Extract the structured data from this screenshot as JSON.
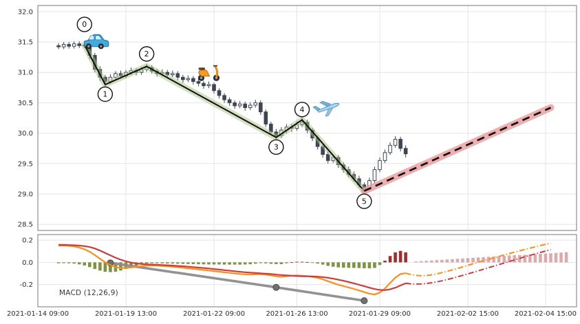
{
  "chart_data": {
    "type": "candlestick",
    "title": "",
    "x_axis": {
      "tick_labels": [
        "2021-01-14 09:00",
        "2021-01-19 13:00",
        "2021-01-22 09:00",
        "2021-01-26 13:00",
        "2021-01-29 09:00",
        "2021-02-02 15:00",
        "2021-02-04 15:00"
      ],
      "tick_indices": [
        0,
        17,
        34,
        50,
        66,
        83,
        98
      ]
    },
    "price_panel": {
      "y_tick_labels": [
        "32.0",
        "31.5",
        "31.0",
        "30.5",
        "30.0",
        "29.5",
        "29.0",
        "28.5"
      ],
      "ylim": [
        28.4,
        32.1
      ],
      "candles_start_index": 4,
      "candles_ohlc": [
        [
          31.44,
          31.48,
          31.38,
          31.42
        ],
        [
          31.42,
          31.5,
          31.38,
          31.46
        ],
        [
          31.46,
          31.5,
          31.39,
          31.43
        ],
        [
          31.43,
          31.51,
          31.39,
          31.47
        ],
        [
          31.47,
          31.51,
          31.4,
          31.44
        ],
        [
          31.44,
          31.52,
          31.4,
          31.45
        ],
        [
          31.45,
          31.48,
          31.22,
          31.28
        ],
        [
          31.28,
          31.32,
          31.0,
          31.05
        ],
        [
          31.05,
          31.1,
          30.86,
          30.92
        ],
        [
          30.92,
          30.96,
          30.76,
          30.85
        ],
        [
          30.85,
          30.97,
          30.81,
          30.92
        ],
        [
          30.92,
          31.02,
          30.88,
          30.98
        ],
        [
          30.98,
          31.03,
          30.9,
          30.94
        ],
        [
          30.94,
          31.04,
          30.9,
          31.0
        ],
        [
          31.0,
          31.08,
          30.96,
          31.03
        ],
        [
          31.03,
          31.07,
          30.95,
          31.0
        ],
        [
          31.0,
          31.09,
          30.96,
          31.05
        ],
        [
          31.05,
          31.14,
          31.01,
          31.08
        ],
        [
          31.08,
          31.12,
          30.98,
          31.02
        ],
        [
          31.02,
          31.06,
          30.93,
          30.98
        ],
        [
          30.98,
          31.05,
          30.94,
          31.0
        ],
        [
          31.0,
          31.04,
          30.91,
          30.96
        ],
        [
          30.96,
          31.03,
          30.92,
          30.98
        ],
        [
          30.98,
          31.02,
          30.87,
          30.92
        ],
        [
          30.92,
          30.96,
          30.83,
          30.88
        ],
        [
          30.88,
          30.95,
          30.84,
          30.9
        ],
        [
          30.9,
          30.94,
          30.8,
          30.85
        ],
        [
          30.85,
          30.89,
          30.77,
          30.82
        ],
        [
          30.82,
          30.86,
          30.73,
          30.78
        ],
        [
          30.78,
          30.85,
          30.74,
          30.8
        ],
        [
          30.8,
          30.83,
          30.65,
          30.7
        ],
        [
          30.7,
          30.74,
          30.57,
          30.62
        ],
        [
          30.62,
          30.66,
          30.5,
          30.55
        ],
        [
          30.55,
          30.59,
          30.45,
          30.5
        ],
        [
          30.5,
          30.54,
          30.4,
          30.45
        ],
        [
          30.45,
          30.53,
          30.41,
          30.48
        ],
        [
          30.48,
          30.52,
          30.37,
          30.42
        ],
        [
          30.42,
          30.51,
          30.38,
          30.46
        ],
        [
          30.46,
          30.55,
          30.42,
          30.5
        ],
        [
          30.5,
          30.54,
          30.3,
          30.35
        ],
        [
          30.35,
          30.39,
          30.1,
          30.15
        ],
        [
          30.15,
          30.19,
          29.97,
          30.02
        ],
        [
          30.02,
          30.07,
          29.9,
          29.96
        ],
        [
          29.96,
          30.1,
          29.92,
          30.05
        ],
        [
          30.05,
          30.15,
          30.0,
          30.1
        ],
        [
          30.1,
          30.15,
          30.02,
          30.08
        ],
        [
          30.08,
          30.19,
          30.04,
          30.14
        ],
        [
          30.14,
          30.26,
          30.1,
          30.18
        ],
        [
          30.18,
          30.22,
          30.0,
          30.05
        ],
        [
          30.05,
          30.09,
          29.87,
          29.92
        ],
        [
          29.92,
          29.96,
          29.73,
          29.78
        ],
        [
          29.78,
          29.82,
          29.6,
          29.65
        ],
        [
          29.65,
          29.7,
          29.5,
          29.55
        ],
        [
          29.55,
          29.65,
          29.51,
          29.6
        ],
        [
          29.6,
          29.64,
          29.43,
          29.48
        ],
        [
          29.48,
          29.52,
          29.35,
          29.4
        ],
        [
          29.4,
          29.45,
          29.27,
          29.32
        ],
        [
          29.32,
          29.37,
          29.2,
          29.25
        ],
        [
          29.25,
          29.3,
          29.1,
          29.15
        ],
        [
          29.15,
          29.19,
          29.0,
          29.08
        ],
        [
          29.08,
          29.27,
          29.05,
          29.22
        ],
        [
          29.22,
          29.45,
          29.18,
          29.4
        ],
        [
          29.4,
          29.6,
          29.36,
          29.55
        ],
        [
          29.55,
          29.73,
          29.51,
          29.68
        ],
        [
          29.68,
          29.85,
          29.64,
          29.8
        ],
        [
          29.8,
          29.95,
          29.76,
          29.9
        ],
        [
          29.9,
          29.94,
          29.7,
          29.75
        ],
        [
          29.75,
          29.8,
          29.6,
          29.66
        ]
      ],
      "wave_points": [
        {
          "label": "0",
          "i": 9,
          "price": 31.45,
          "label_dy": -30
        },
        {
          "label": "1",
          "i": 13,
          "price": 30.8,
          "label_dy": 14
        },
        {
          "label": "2",
          "i": 21,
          "price": 31.1,
          "label_dy": -18
        },
        {
          "label": "3",
          "i": 46,
          "price": 29.93,
          "label_dy": 14
        },
        {
          "label": "4",
          "i": 51,
          "price": 30.22,
          "label_dy": -15
        },
        {
          "label": "5",
          "i": 63,
          "price": 29.05,
          "label_dy": 15
        }
      ],
      "forecast_line": {
        "from_i": 63,
        "from_price": 29.05,
        "to_i": 99,
        "to_price": 30.42,
        "style": "dashed"
      },
      "icons": [
        {
          "name": "car-icon",
          "i": 11,
          "price": 31.52
        },
        {
          "name": "scooter-icon",
          "i": 33,
          "price": 31.0
        },
        {
          "name": "airplane-icon",
          "i": 56,
          "price": 30.42
        }
      ]
    },
    "macd_panel": {
      "label": "MACD (12,26,9)",
      "y_tick_labels": [
        "0.2",
        "0.0",
        "-0.2"
      ],
      "ylim": [
        -0.4,
        0.25
      ],
      "series_start_index": 4,
      "macd": [
        0.15,
        0.15,
        0.148,
        0.143,
        0.133,
        0.118,
        0.095,
        0.065,
        0.032,
        0.0,
        -0.025,
        -0.042,
        -0.05,
        -0.05,
        -0.046,
        -0.04,
        -0.034,
        -0.029,
        -0.028,
        -0.03,
        -0.033,
        -0.036,
        -0.04,
        -0.044,
        -0.049,
        -0.054,
        -0.059,
        -0.064,
        -0.069,
        -0.074,
        -0.079,
        -0.084,
        -0.09,
        -0.095,
        -0.1,
        -0.105,
        -0.108,
        -0.11,
        -0.108,
        -0.106,
        -0.111,
        -0.118,
        -0.126,
        -0.13,
        -0.126,
        -0.12,
        -0.118,
        -0.12,
        -0.124,
        -0.131,
        -0.14,
        -0.153,
        -0.17,
        -0.186,
        -0.201,
        -0.214,
        -0.226,
        -0.239,
        -0.253,
        -0.268,
        -0.282,
        -0.29,
        -0.272,
        -0.235,
        -0.186,
        -0.138,
        -0.105,
        -0.098
      ],
      "signal": [
        0.158,
        0.157,
        0.156,
        0.154,
        0.151,
        0.146,
        0.138,
        0.125,
        0.106,
        0.085,
        0.063,
        0.042,
        0.024,
        0.009,
        -0.002,
        -0.01,
        -0.015,
        -0.018,
        -0.02,
        -0.022,
        -0.024,
        -0.026,
        -0.029,
        -0.032,
        -0.035,
        -0.039,
        -0.043,
        -0.047,
        -0.051,
        -0.055,
        -0.06,
        -0.065,
        -0.07,
        -0.075,
        -0.08,
        -0.085,
        -0.089,
        -0.093,
        -0.096,
        -0.099,
        -0.102,
        -0.105,
        -0.11,
        -0.114,
        -0.118,
        -0.121,
        -0.123,
        -0.125,
        -0.126,
        -0.127,
        -0.129,
        -0.133,
        -0.139,
        -0.147,
        -0.156,
        -0.166,
        -0.177,
        -0.189,
        -0.202,
        -0.215,
        -0.228,
        -0.24,
        -0.248,
        -0.25,
        -0.243,
        -0.228,
        -0.208,
        -0.188
      ],
      "macd_projection": {
        "start_i": 71,
        "values": [
          -0.098,
          -0.11,
          -0.118,
          -0.121,
          -0.119,
          -0.113,
          -0.104,
          -0.093,
          -0.081,
          -0.068,
          -0.055,
          -0.041,
          -0.027,
          -0.013,
          0.001,
          0.014,
          0.027,
          0.04,
          0.053,
          0.066,
          0.079,
          0.092,
          0.104,
          0.116,
          0.128,
          0.14,
          0.151,
          0.162,
          0.173
        ]
      },
      "signal_projection": {
        "start_i": 71,
        "values": [
          -0.188,
          -0.193,
          -0.195,
          -0.194,
          -0.19,
          -0.184,
          -0.176,
          -0.166,
          -0.155,
          -0.143,
          -0.13,
          -0.117,
          -0.104,
          -0.09,
          -0.076,
          -0.062,
          -0.048,
          -0.034,
          -0.02,
          -0.006,
          0.008,
          0.022,
          0.036,
          0.05,
          0.063,
          0.076,
          0.089,
          0.102,
          0.115
        ]
      },
      "hist_projection": {
        "start_i": 73,
        "values": [
          0.008,
          0.011,
          0.014,
          0.017,
          0.02,
          0.023,
          0.026,
          0.029,
          0.032,
          0.035,
          0.038,
          0.041,
          0.044,
          0.047,
          0.05,
          0.053,
          0.056,
          0.059,
          0.062,
          0.064,
          0.066,
          0.068,
          0.07,
          0.073,
          0.076,
          0.079,
          0.082,
          0.085,
          0.088,
          0.091
        ]
      },
      "trend_line_points": [
        [
          14,
          -0.005
        ],
        [
          46,
          -0.225
        ],
        [
          63,
          -0.345
        ]
      ]
    },
    "colors": {
      "grid": "#e4e4e4",
      "panel_border": "#777777",
      "candle_down": "#3d4654",
      "candle_up_fill": "#ffffff",
      "wave_line": "#111111",
      "wave_band": "#a9c186",
      "forecast_line": "#111111",
      "forecast_band": "#e89b9b",
      "macd_line": "#ff8c1a",
      "signal_line": "#cf3a3a",
      "hist_pos": "#9e2f2f",
      "hist_neg": "#7d9440",
      "hist_projection": "#d59398",
      "trend_line": "#8c8c8c",
      "axis_text": "#2b2b2b"
    }
  }
}
